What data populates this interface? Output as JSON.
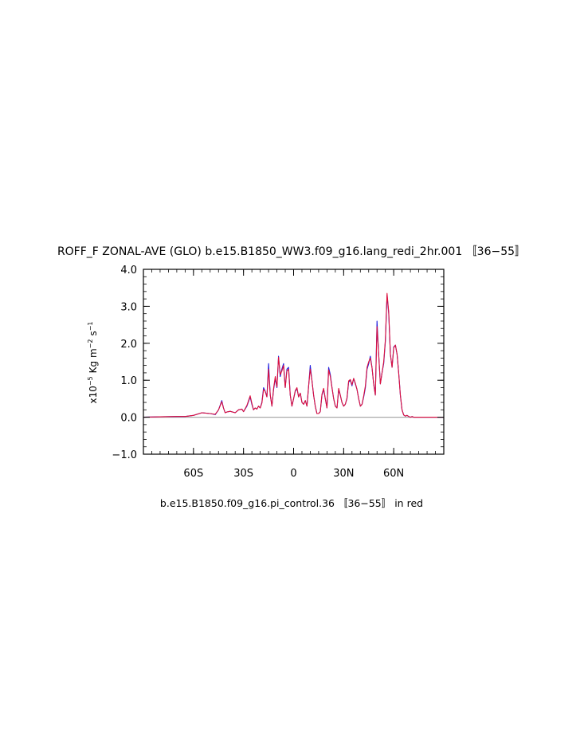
{
  "chart_data": {
    "type": "line",
    "title": "ROFF_F ZONAL-AVE (GLO) b.e15.B1850_WW3.f09_g16.lang_redi_2hr.001 〚36−55〛",
    "ylabel_prefix": "x10",
    "ylabel_exp": "−5",
    "ylabel_units": "Kg m",
    "ylabel_units_exp": "−2",
    "ylabel_s": "s",
    "ylabel_s_exp": "−1",
    "caption": "b.e15.B1850.f09_g16.pi_control.36 〚36−55〛 in red",
    "xlim": [
      -90,
      90
    ],
    "ylim": [
      -1.0,
      4.0
    ],
    "x_ticks": [
      -60,
      -30,
      0,
      30,
      60
    ],
    "x_tick_labels": [
      "60S",
      "30S",
      "0",
      "30N",
      "60N"
    ],
    "y_ticks": [
      -1.0,
      0.0,
      1.0,
      2.0,
      3.0,
      4.0
    ],
    "y_tick_labels": [
      "−1.0",
      "0.0",
      "1.0",
      "2.0",
      "3.0",
      "4.0"
    ],
    "reference_line": 0.0,
    "grid": false,
    "colors": {
      "series_blue": "#1f1fe0",
      "series_red": "#e0103a",
      "zero_line": "#a8a8a8",
      "axes": "#000000"
    },
    "x": [
      -90,
      -80,
      -70,
      -65,
      -60,
      -55,
      -50,
      -47,
      -45,
      -43,
      -42,
      -41,
      -40,
      -38,
      -35,
      -33,
      -31,
      -30,
      -28,
      -26,
      -25,
      -24,
      -23,
      -22,
      -21,
      -20,
      -19,
      -18,
      -17,
      -16,
      -15,
      -14,
      -13,
      -12,
      -11,
      -10,
      -9,
      -8,
      -7,
      -6,
      -5,
      -4,
      -3,
      -2,
      -1,
      0,
      1,
      2,
      3,
      4,
      5,
      6,
      7,
      8,
      9,
      10,
      11,
      12,
      13,
      14,
      15,
      16,
      17,
      18,
      19,
      20,
      21,
      22,
      23,
      24,
      25,
      26,
      27,
      28,
      29,
      30,
      31,
      32,
      33,
      34,
      35,
      36,
      37,
      38,
      39,
      40,
      41,
      42,
      43,
      44,
      45,
      46,
      47,
      48,
      49,
      50,
      51,
      52,
      53,
      54,
      55,
      56,
      57,
      58,
      59,
      60,
      61,
      62,
      63,
      64,
      65,
      66,
      67,
      68,
      69,
      70,
      71,
      72,
      73,
      74,
      75,
      76,
      77,
      78,
      80,
      85,
      90
    ],
    "series": [
      {
        "values": [
          0.0,
          0.01,
          0.02,
          0.02,
          0.05,
          0.12,
          0.1,
          0.07,
          0.2,
          0.45,
          0.25,
          0.12,
          0.14,
          0.16,
          0.12,
          0.2,
          0.22,
          0.15,
          0.3,
          0.55,
          0.35,
          0.2,
          0.25,
          0.22,
          0.3,
          0.25,
          0.4,
          0.8,
          0.7,
          0.55,
          1.45,
          0.6,
          0.3,
          0.75,
          1.05,
          0.8,
          1.65,
          1.1,
          1.3,
          1.45,
          0.8,
          1.3,
          1.35,
          0.6,
          0.3,
          0.5,
          0.7,
          0.78,
          0.55,
          0.65,
          0.4,
          0.35,
          0.45,
          0.3,
          0.85,
          1.4,
          1.0,
          0.6,
          0.3,
          0.1,
          0.1,
          0.15,
          0.6,
          0.75,
          0.5,
          0.25,
          1.35,
          1.15,
          0.8,
          0.5,
          0.3,
          0.25,
          0.75,
          0.6,
          0.4,
          0.3,
          0.35,
          0.5,
          0.95,
          1.0,
          0.85,
          1.05,
          0.9,
          0.75,
          0.5,
          0.3,
          0.35,
          0.55,
          0.8,
          1.3,
          1.45,
          1.65,
          1.35,
          0.9,
          0.6,
          2.6,
          1.7,
          0.9,
          1.2,
          1.45,
          2.05,
          3.3,
          2.8,
          1.7,
          1.35,
          1.9,
          1.95,
          1.7,
          1.2,
          0.6,
          0.2,
          0.06,
          0.03,
          0.05,
          0.02,
          0.0,
          0.02,
          0.0,
          0.0,
          0.0,
          0.0,
          0.0,
          0.0,
          0.0,
          0.0,
          0.0,
          0.0
        ]
      },
      {
        "values": [
          0.0,
          0.01,
          0.02,
          0.02,
          0.05,
          0.12,
          0.1,
          0.08,
          0.2,
          0.42,
          0.25,
          0.12,
          0.14,
          0.16,
          0.12,
          0.2,
          0.22,
          0.15,
          0.32,
          0.58,
          0.38,
          0.2,
          0.25,
          0.22,
          0.3,
          0.25,
          0.38,
          0.75,
          0.7,
          0.55,
          1.3,
          0.6,
          0.3,
          0.78,
          1.1,
          0.82,
          1.62,
          1.15,
          1.25,
          1.4,
          0.8,
          1.25,
          1.3,
          0.6,
          0.3,
          0.5,
          0.72,
          0.8,
          0.55,
          0.65,
          0.4,
          0.35,
          0.45,
          0.3,
          0.85,
          1.3,
          1.0,
          0.6,
          0.3,
          0.1,
          0.1,
          0.15,
          0.62,
          0.78,
          0.5,
          0.25,
          1.28,
          1.1,
          0.8,
          0.5,
          0.3,
          0.25,
          0.78,
          0.6,
          0.4,
          0.3,
          0.35,
          0.52,
          0.98,
          1.02,
          0.88,
          1.05,
          0.92,
          0.75,
          0.5,
          0.3,
          0.35,
          0.58,
          0.85,
          1.35,
          1.5,
          1.6,
          1.35,
          0.9,
          0.6,
          2.45,
          1.7,
          0.9,
          1.2,
          1.5,
          2.1,
          3.35,
          2.85,
          1.7,
          1.35,
          1.88,
          1.95,
          1.7,
          1.2,
          0.6,
          0.2,
          0.06,
          0.03,
          0.05,
          0.02,
          0.0,
          0.02,
          0.0,
          0.0,
          0.0,
          0.0,
          0.0,
          0.0,
          0.0,
          0.0,
          0.0,
          0.0
        ]
      }
    ]
  }
}
